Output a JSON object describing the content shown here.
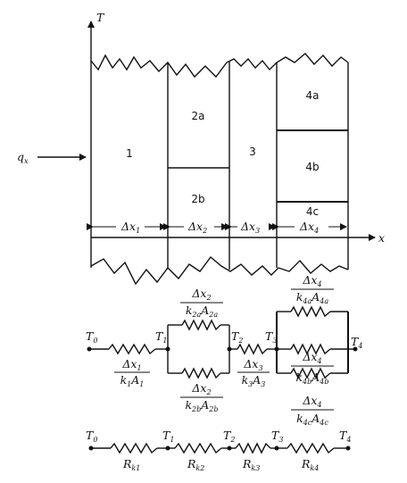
{
  "axes": {
    "t_label": "T",
    "x_label": "x"
  },
  "heat_flux": {
    "q": "q",
    "sub": "x"
  },
  "layers": {
    "l1": "1",
    "l2a": "2a",
    "l2b": "2b",
    "l3": "3",
    "l4a": "4a",
    "l4b": "4b",
    "l4c": "4c"
  },
  "thickness": {
    "dx1": {
      "base": "Δx",
      "sub": "1"
    },
    "dx2": {
      "base": "Δx",
      "sub": "2"
    },
    "dx3": {
      "base": "Δx",
      "sub": "3"
    },
    "dx4": {
      "base": "Δx",
      "sub": "4"
    }
  },
  "circuit1": {
    "T0": {
      "base": "T",
      "sub": "0"
    },
    "T1": {
      "base": "T",
      "sub": "1"
    },
    "T2": {
      "base": "T",
      "sub": "2"
    },
    "T3": {
      "base": "T",
      "sub": "3"
    },
    "T4": {
      "base": "T",
      "sub": "4"
    },
    "r1": {
      "num": "Δx",
      "num_sub": "1",
      "den_k": "k",
      "den_k_sub": "1",
      "den_a": "A",
      "den_a_sub": "1"
    },
    "r2a": {
      "num": "Δx",
      "num_sub": "2",
      "den_k": "k",
      "den_k_sub": "2a",
      "den_a": "A",
      "den_a_sub": "2a"
    },
    "r2b": {
      "num": "Δx",
      "num_sub": "2",
      "den_k": "k",
      "den_k_sub": "2b",
      "den_a": "A",
      "den_a_sub": "2b"
    },
    "r3": {
      "num": "Δx",
      "num_sub": "3",
      "den_k": "k",
      "den_k_sub": "3",
      "den_a": "A",
      "den_a_sub": "3"
    },
    "r4a": {
      "num": "Δx",
      "num_sub": "4",
      "den_k": "k",
      "den_k_sub": "4a",
      "den_a": "A",
      "den_a_sub": "4a"
    },
    "r4b": {
      "num": "Δx",
      "num_sub": "4",
      "den_k": "k",
      "den_k_sub": "4b",
      "den_a": "A",
      "den_a_sub": "4b"
    },
    "r4c": {
      "num": "Δx",
      "num_sub": "4",
      "den_k": "k",
      "den_k_sub": "4c",
      "den_a": "A",
      "den_a_sub": "4c"
    }
  },
  "circuit2": {
    "T0": {
      "base": "T",
      "sub": "0"
    },
    "T1": {
      "base": "T",
      "sub": "1"
    },
    "T2": {
      "base": "T",
      "sub": "2"
    },
    "T3": {
      "base": "T",
      "sub": "3"
    },
    "T4": {
      "base": "T",
      "sub": "4"
    },
    "rk1": {
      "base": "R",
      "sub": "k1"
    },
    "rk2": {
      "base": "R",
      "sub": "k2"
    },
    "rk3": {
      "base": "R",
      "sub": "k3"
    },
    "rk4": {
      "base": "R",
      "sub": "k4"
    }
  }
}
